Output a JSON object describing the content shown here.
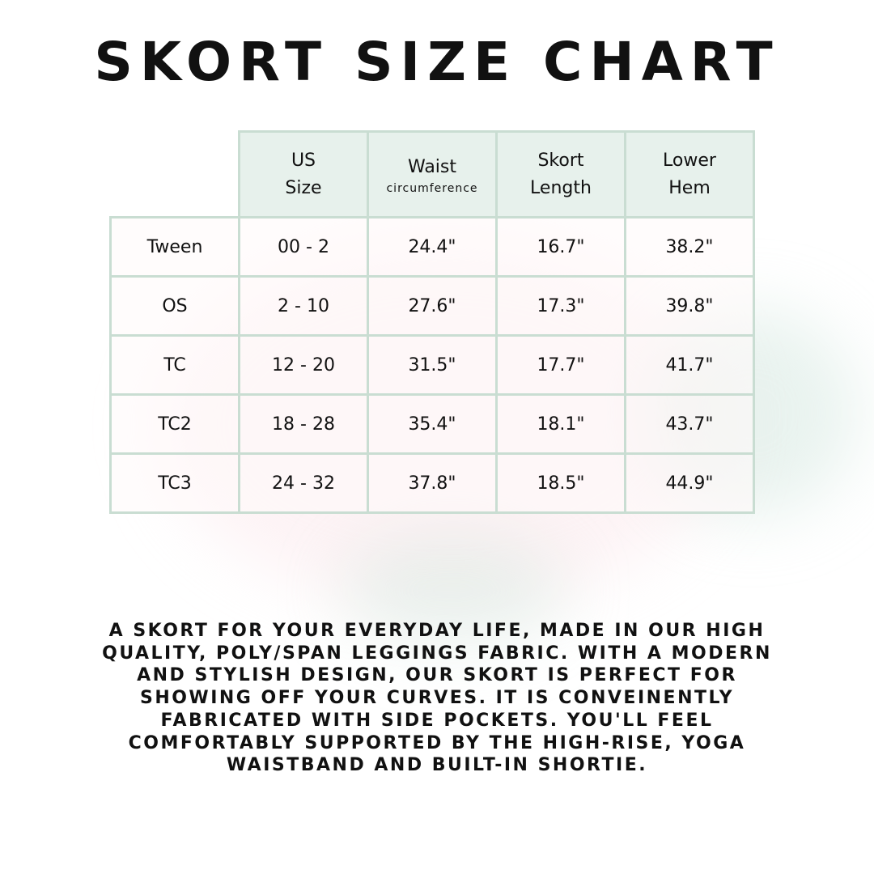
{
  "title": "SKORT SIZE CHART",
  "table": {
    "headers": [
      {
        "line1": "US",
        "line2": "Size"
      },
      {
        "line1": "Waist",
        "line2": "circumference"
      },
      {
        "line1": "Skort",
        "line2": "Length"
      },
      {
        "line1": "Lower",
        "line2": "Hem"
      }
    ],
    "rows": [
      {
        "label": "Tween",
        "cells": [
          "00 - 2",
          "24.4\"",
          "16.7\"",
          "38.2\""
        ]
      },
      {
        "label": "OS",
        "cells": [
          "2 - 10",
          "27.6\"",
          "17.3\"",
          "39.8\""
        ]
      },
      {
        "label": "TC",
        "cells": [
          "12 - 20",
          "31.5\"",
          "17.7\"",
          "41.7\""
        ]
      },
      {
        "label": "TC2",
        "cells": [
          "18 - 28",
          "35.4\"",
          "18.1\"",
          "43.7\""
        ]
      },
      {
        "label": "TC3",
        "cells": [
          "24 - 32",
          "37.8\"",
          "18.5\"",
          "44.9\""
        ]
      }
    ]
  },
  "description": [
    "A SKORT FOR YOUR EVERYDAY LIFE, MADE IN OUR HIGH",
    "QUALITY, POLY/SPAN LEGGINGS FABRIC. WITH A MODERN",
    "AND STYLISH DESIGN, OUR SKORT IS PERFECT FOR",
    "SHOWING OFF YOUR CURVES. IT IS CONVEINENTLY",
    "FABRICATED WITH SIDE POCKETS. YOU'LL FEEL",
    "COMFORTABLY SUPPORTED BY THE HIGH-RISE, YOGA",
    "WAISTBAND AND BUILT-IN SHORTIE."
  ],
  "colors": {
    "header_fill": "#e7f1ec",
    "border": "#c9ddd2",
    "text": "#111111"
  }
}
